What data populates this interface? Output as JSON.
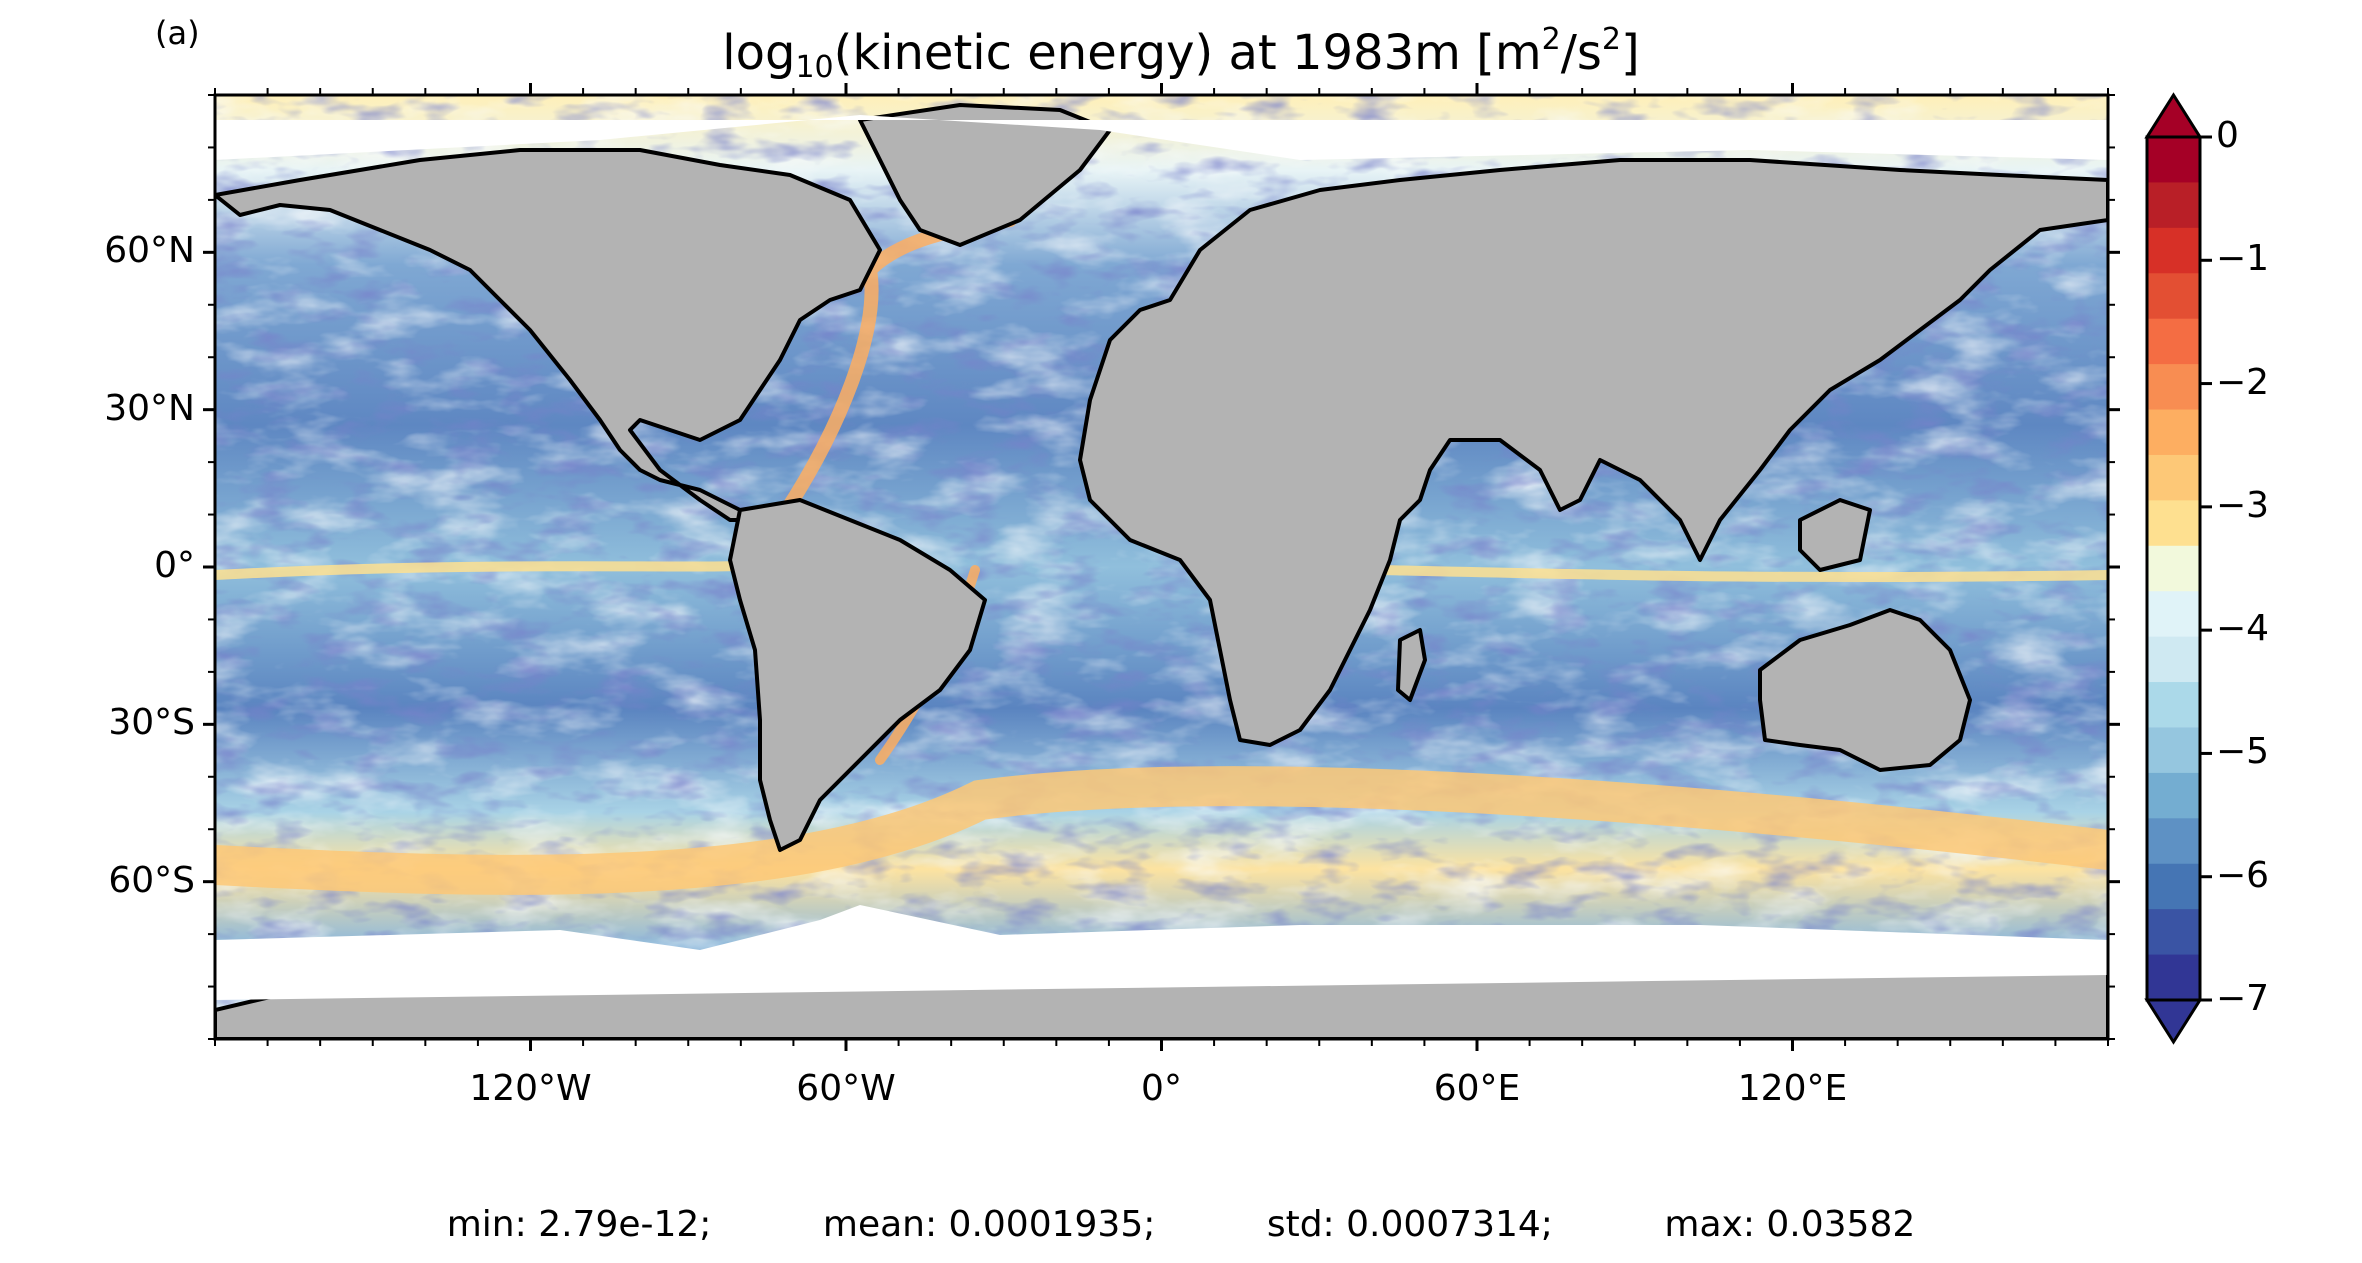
{
  "panel_label": "(a)",
  "title": {
    "prefix": "log",
    "sub": "10",
    "middle": "(kinetic energy) at 1983m [m",
    "sup1": "2",
    "mid2": "/s",
    "sup2": "2",
    "suffix": "]"
  },
  "map": {
    "projection": "equirectangular",
    "lon_range": [
      -180,
      180
    ],
    "lat_range": [
      -90,
      90
    ],
    "land_color": "#b3b3b3",
    "coast_color": "#000000",
    "lat_ticks": [
      {
        "value": 60,
        "label": "60°N"
      },
      {
        "value": 30,
        "label": "30°N"
      },
      {
        "value": 0,
        "label": "0°"
      },
      {
        "value": -30,
        "label": "30°S"
      },
      {
        "value": -60,
        "label": "60°S"
      }
    ],
    "lon_ticks": [
      {
        "value": -120,
        "label": "120°W"
      },
      {
        "value": -60,
        "label": "60°W"
      },
      {
        "value": 0,
        "label": "0°"
      },
      {
        "value": 60,
        "label": "60°E"
      },
      {
        "value": 120,
        "label": "120°E"
      }
    ]
  },
  "colorbar": {
    "min": -7,
    "max": 0,
    "extend": "both",
    "ticks": [
      {
        "value": 0,
        "label": "0"
      },
      {
        "value": -1,
        "label": "−1"
      },
      {
        "value": -2,
        "label": "−2"
      },
      {
        "value": -3,
        "label": "−3"
      },
      {
        "value": -4,
        "label": "−4"
      },
      {
        "value": -5,
        "label": "−5"
      },
      {
        "value": -6,
        "label": "−6"
      },
      {
        "value": -7,
        "label": "−7"
      }
    ],
    "colors": [
      "#313695",
      "#3a54a4",
      "#4575b4",
      "#5e91c4",
      "#74add1",
      "#95c6df",
      "#abd9e9",
      "#cfe9f2",
      "#e0f3f8",
      "#f2f9dc",
      "#fee090",
      "#fdc877",
      "#fdae61",
      "#f88d52",
      "#f46d43",
      "#e34f33",
      "#d73027",
      "#b91f27",
      "#a50026"
    ]
  },
  "stats": {
    "min": "min: 2.79e-12;",
    "mean": "mean: 0.0001935;",
    "std": "std: 0.0007314;",
    "max": "max: 0.03582"
  }
}
